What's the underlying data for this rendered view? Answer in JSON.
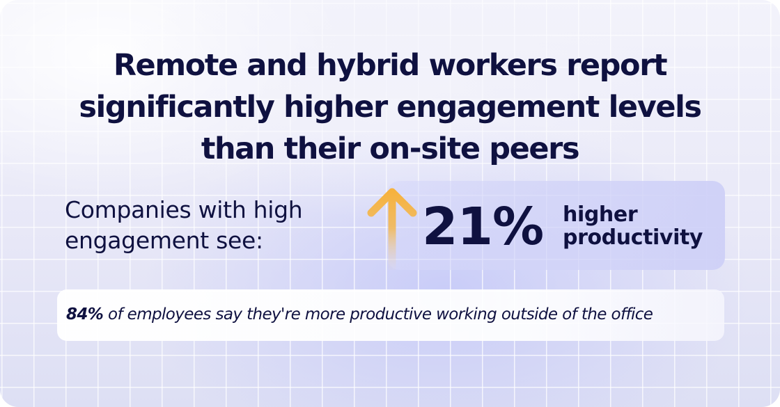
{
  "headline": {
    "line1": "Remote and hybrid workers report",
    "line2": "significantly higher engagement levels",
    "line3": "than their on-site peers"
  },
  "companies": {
    "line1": "Companies with high",
    "line2": "engagement see:"
  },
  "stat": {
    "icon": "arrow-up-icon",
    "value": "21%",
    "label_line1": "higher",
    "label_line2": "productivity"
  },
  "quote": {
    "highlight": "84%",
    "text": " of employees say they're more productive working outside of the office"
  },
  "colors": {
    "text": "#0f1140",
    "arrow_top": "#f6b23e",
    "panel": "#d0d2f7"
  }
}
